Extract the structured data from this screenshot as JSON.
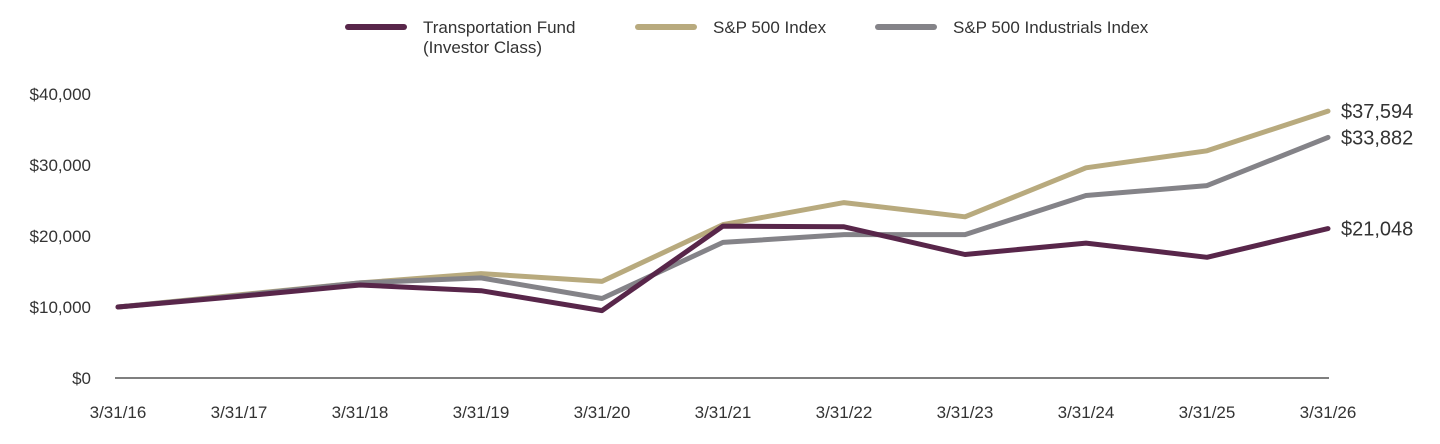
{
  "legend": [
    {
      "label": "Transportation Fund\n(Investor Class)",
      "color": "#58264a"
    },
    {
      "label": "S&P 500 Index",
      "color": "#b8aa7e"
    },
    {
      "label": "S&P 500 Industrials Index",
      "color": "#848388"
    }
  ],
  "chart_data": {
    "type": "line",
    "x": [
      "3/31/16",
      "3/31/17",
      "3/31/18",
      "3/31/19",
      "3/31/20",
      "3/31/21",
      "3/31/22",
      "3/31/23",
      "3/31/24",
      "3/31/25",
      "3/31/26"
    ],
    "ylim": [
      0,
      40000
    ],
    "yticks": [
      0,
      10000,
      20000,
      30000,
      40000
    ],
    "ytick_labels": [
      "$0",
      "$10,000",
      "$20,000",
      "$30,000",
      "$40,000"
    ],
    "grid": false,
    "legend_position": "top",
    "series": [
      {
        "name": "S&P 500 Index",
        "color": "#b8aa7e",
        "values": [
          10000,
          11700,
          13400,
          14700,
          13600,
          21600,
          24700,
          22700,
          29600,
          32000,
          37594
        ],
        "end_label": "$37,594"
      },
      {
        "name": "S&P 500 Industrials Index",
        "color": "#848388",
        "values": [
          10000,
          11600,
          13400,
          14100,
          11200,
          19100,
          20200,
          20200,
          25700,
          27100,
          33882
        ],
        "end_label": "$33,882"
      },
      {
        "name": "Transportation Fund (Investor Class)",
        "color": "#58264a",
        "values": [
          10000,
          11500,
          13100,
          12300,
          9500,
          21400,
          21300,
          17400,
          19000,
          17000,
          21048
        ],
        "end_label": "$21,048"
      }
    ]
  }
}
